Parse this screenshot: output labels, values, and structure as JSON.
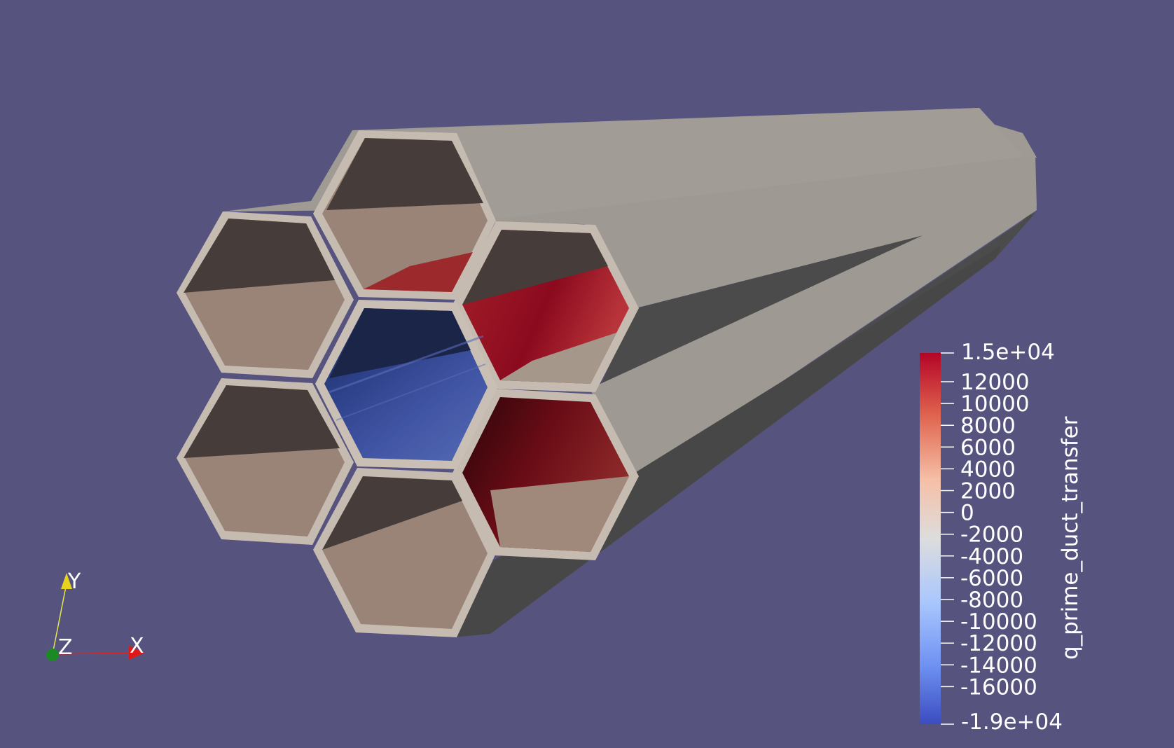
{
  "viewer": {
    "background": "#56547f"
  },
  "scalar_bar": {
    "title": "q_prime_duct_transfer",
    "max_label": "1.5e+04",
    "min_label": "-1.9e+04",
    "ticks": [
      "12000",
      "10000",
      "8000",
      "6000",
      "4000",
      "2000",
      "0",
      "-2000",
      "-4000",
      "-6000",
      "-8000",
      "-10000",
      "-12000",
      "-14000",
      "-16000"
    ],
    "colors": [
      "#b40426",
      "#e0654f",
      "#f6bfa6",
      "#dddddd",
      "#aac7fd",
      "#6f92f3",
      "#3b4cc0"
    ]
  },
  "orientation_axes": {
    "y_label": "Y",
    "x_label": "X",
    "z_label": "Z"
  },
  "render": {
    "duct_count": 7,
    "center_duct_color": "#3b4cc0",
    "outer_duct_color": "#a09c95"
  }
}
